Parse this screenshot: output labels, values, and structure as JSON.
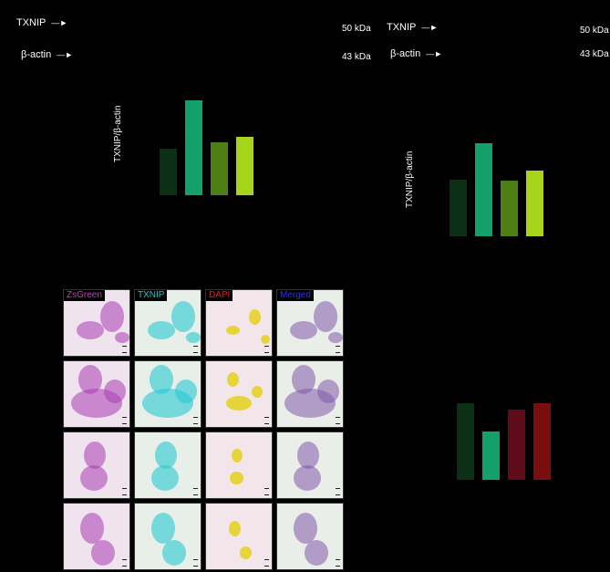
{
  "blot_left": {
    "bands": [
      {
        "label": "TXNIP",
        "kda": "50 kDa"
      },
      {
        "label": "β-actin",
        "kda": "43 kDa"
      }
    ]
  },
  "blot_right": {
    "bands": [
      {
        "label": "TXNIP",
        "kda": "50 kDa"
      },
      {
        "label": "β-actin",
        "kda": "43 kDa"
      }
    ]
  },
  "chart_data": [
    {
      "type": "bar",
      "ylabel": "TXNIP/β-actin",
      "values": [
        0.49,
        1.0,
        0.56,
        0.62
      ],
      "colors": [
        "#0c3016",
        "#14a06a",
        "#4d7f14",
        "#a6d41a"
      ]
    },
    {
      "type": "bar",
      "ylabel": "TXNIP/β-actin",
      "values": [
        0.61,
        1.0,
        0.6,
        0.71
      ],
      "colors": [
        "#0c3016",
        "#14a06a",
        "#4d7f14",
        "#a6d41a"
      ]
    },
    {
      "type": "bar",
      "ylabel": "",
      "values": [
        0.98,
        0.62,
        0.89,
        0.98
      ],
      "colors": [
        "#0c3016",
        "#14a06a",
        "#5e0c1a",
        "#7a0e0e"
      ]
    }
  ],
  "micrographs": {
    "channels": [
      {
        "label": "ZsGreen",
        "color": "#c040c0"
      },
      {
        "label": "TXNIP",
        "color": "#20c8c8"
      },
      {
        "label": "DAPI",
        "color": "#e02020"
      },
      {
        "label": "Merged",
        "color": "#3030e0"
      }
    ],
    "rows": 4
  }
}
